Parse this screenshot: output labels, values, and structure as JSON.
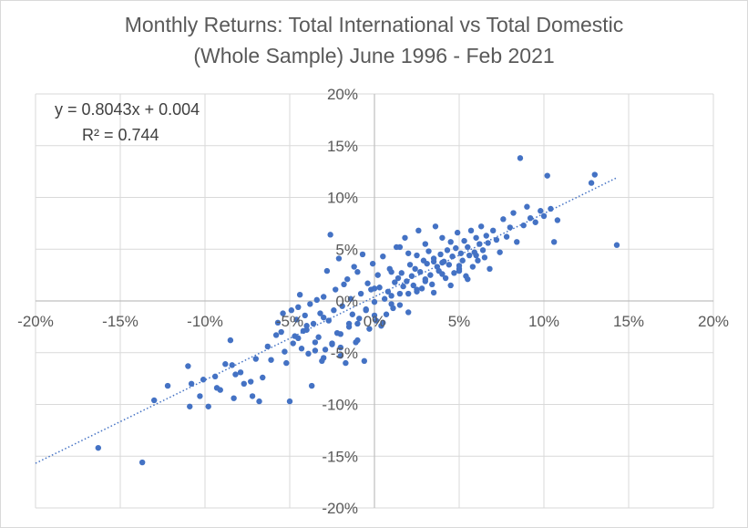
{
  "chart_data": {
    "type": "scatter",
    "title": [
      "Monthly Returns: Total International vs Total Domestic",
      "(Whole Sample) June 1996 - Feb 2021"
    ],
    "xlabel": "",
    "ylabel": "",
    "xlim": [
      -0.2,
      0.2
    ],
    "ylim": [
      -0.2,
      0.2
    ],
    "x_ticks": [
      -0.2,
      -0.15,
      -0.1,
      -0.05,
      0,
      0.05,
      0.1,
      0.15,
      0.2
    ],
    "x_tick_labels": [
      "-20%",
      "-15%",
      "-10%",
      "-5%",
      "0%",
      "5%",
      "10%",
      "15%",
      "20%"
    ],
    "y_ticks": [
      -0.2,
      -0.15,
      -0.1,
      -0.05,
      0,
      0.05,
      0.1,
      0.15,
      0.2
    ],
    "y_tick_labels": [
      "-20%",
      "-15%",
      "-10%",
      "-5%",
      "0%",
      "5%",
      "10%",
      "15%",
      "20%"
    ],
    "grid": "major",
    "marker_color": "#4472c4",
    "trendline": {
      "type": "linear",
      "slope": 0.8043,
      "intercept": 0.004,
      "equation_label": "y = 0.8043x + 0.004",
      "r2_label": "R² = 0.744",
      "color": "#4472c4",
      "style": "dotted"
    },
    "series": [
      {
        "x": [
          -0.163,
          -0.137,
          -0.13,
          -0.122,
          -0.11,
          -0.109,
          -0.108,
          -0.103,
          -0.101,
          -0.098,
          -0.094,
          -0.093,
          -0.091,
          -0.088,
          -0.085,
          -0.084,
          -0.083,
          -0.082,
          -0.079,
          -0.077,
          -0.073,
          -0.072,
          -0.07,
          -0.068,
          -0.066,
          -0.063,
          -0.061,
          -0.058,
          -0.057,
          -0.055,
          -0.054,
          -0.053,
          -0.052,
          -0.05,
          -0.049,
          -0.048,
          -0.047,
          -0.046,
          -0.045,
          -0.044,
          -0.043,
          -0.042,
          -0.041,
          -0.04,
          -0.039,
          -0.038,
          -0.037,
          -0.036,
          -0.035,
          -0.034,
          -0.033,
          -0.032,
          -0.031,
          -0.03,
          -0.029,
          -0.028,
          -0.027,
          -0.026,
          -0.025,
          -0.024,
          -0.023,
          -0.022,
          -0.021,
          -0.02,
          -0.019,
          -0.018,
          -0.017,
          -0.016,
          -0.015,
          -0.014,
          -0.013,
          -0.012,
          -0.011,
          -0.01,
          -0.009,
          -0.008,
          -0.007,
          -0.006,
          -0.005,
          -0.004,
          -0.003,
          -0.002,
          -0.001,
          0.0,
          0.001,
          0.002,
          0.003,
          0.004,
          0.005,
          0.006,
          0.007,
          0.008,
          0.009,
          0.01,
          0.011,
          0.012,
          0.013,
          0.014,
          0.015,
          0.016,
          0.017,
          0.018,
          0.019,
          0.02,
          0.021,
          0.022,
          0.023,
          0.024,
          0.025,
          0.026,
          0.027,
          0.028,
          0.029,
          0.03,
          0.031,
          0.032,
          0.033,
          0.034,
          0.035,
          0.036,
          0.037,
          0.038,
          0.039,
          0.04,
          0.041,
          0.042,
          0.043,
          0.044,
          0.045,
          0.046,
          0.047,
          0.048,
          0.049,
          0.05,
          0.051,
          0.052,
          0.053,
          0.054,
          0.055,
          0.056,
          0.057,
          0.058,
          0.059,
          0.06,
          0.061,
          0.062,
          0.063,
          0.064,
          0.065,
          0.066,
          0.067,
          0.068,
          0.07,
          0.072,
          0.074,
          0.076,
          0.078,
          0.08,
          0.082,
          0.084,
          0.086,
          0.088,
          0.09,
          0.092,
          0.095,
          0.098,
          0.1,
          0.102,
          0.104,
          0.106,
          0.108,
          0.128,
          0.13,
          0.143,
          -0.045,
          -0.04,
          -0.035,
          -0.03,
          -0.025,
          -0.02,
          -0.015,
          -0.01,
          -0.005,
          0.0,
          0.005,
          0.01,
          0.015,
          0.02,
          0.025,
          0.03,
          0.035,
          0.04,
          0.045,
          0.05,
          0.055,
          0.06,
          -0.03,
          -0.02,
          -0.01,
          0.0,
          0.01,
          0.02,
          0.03,
          0.04,
          0.05,
          0.015,
          0.025,
          0.035
        ],
        "y": [
          -0.142,
          -0.156,
          -0.096,
          -0.082,
          -0.063,
          -0.102,
          -0.08,
          -0.092,
          -0.076,
          -0.102,
          -0.073,
          -0.084,
          -0.086,
          -0.061,
          -0.038,
          -0.062,
          -0.094,
          -0.071,
          -0.069,
          -0.08,
          -0.078,
          -0.092,
          -0.056,
          -0.097,
          -0.074,
          -0.044,
          -0.057,
          -0.033,
          -0.021,
          -0.03,
          -0.012,
          -0.049,
          -0.06,
          -0.097,
          -0.009,
          -0.041,
          -0.034,
          -0.018,
          -0.006,
          0.006,
          -0.046,
          -0.029,
          -0.014,
          -0.024,
          -0.051,
          -0.003,
          -0.082,
          -0.022,
          -0.04,
          0.001,
          -0.035,
          -0.012,
          -0.058,
          0.004,
          -0.047,
          0.029,
          -0.019,
          0.064,
          -0.042,
          -0.009,
          0.011,
          -0.031,
          0.041,
          -0.053,
          -0.005,
          0.016,
          -0.06,
          0.021,
          -0.022,
          0.002,
          -0.013,
          0.033,
          -0.04,
          0.028,
          -0.017,
          0.007,
          0.045,
          -0.058,
          -0.008,
          0.017,
          -0.027,
          0.011,
          0.036,
          -0.001,
          -0.019,
          0.025,
          0.013,
          -0.024,
          0.043,
          0.002,
          -0.013,
          0.009,
          0.031,
          0.005,
          -0.007,
          0.018,
          0.052,
          0.022,
          -0.004,
          0.027,
          0.014,
          0.061,
          0.019,
          0.007,
          0.035,
          0.024,
          0.015,
          0.031,
          0.044,
          0.068,
          0.028,
          0.012,
          0.039,
          0.021,
          0.036,
          0.048,
          0.025,
          0.016,
          0.041,
          0.072,
          0.033,
          0.029,
          0.045,
          0.061,
          0.038,
          0.022,
          0.049,
          0.035,
          0.057,
          0.043,
          0.027,
          0.051,
          0.066,
          0.031,
          0.046,
          0.039,
          0.058,
          0.024,
          0.052,
          0.044,
          0.068,
          0.033,
          0.047,
          0.061,
          0.039,
          0.055,
          0.072,
          0.049,
          0.042,
          0.063,
          0.056,
          0.031,
          0.068,
          0.059,
          0.047,
          0.079,
          0.062,
          0.071,
          0.085,
          0.057,
          0.138,
          0.073,
          0.091,
          0.08,
          0.076,
          0.087,
          0.082,
          0.121,
          0.089,
          0.057,
          0.078,
          0.114,
          0.122,
          0.054,
          -0.036,
          -0.028,
          -0.048,
          -0.016,
          -0.041,
          -0.032,
          -0.025,
          -0.038,
          -0.009,
          -0.014,
          -0.021,
          -0.003,
          0.007,
          -0.011,
          0.011,
          0.019,
          0.008,
          0.026,
          0.015,
          0.034,
          0.021,
          0.044,
          -0.055,
          -0.045,
          -0.022,
          0.012,
          0.028,
          0.046,
          0.055,
          0.037,
          0.029,
          0.052,
          0.009,
          0.038
        ]
      }
    ]
  }
}
